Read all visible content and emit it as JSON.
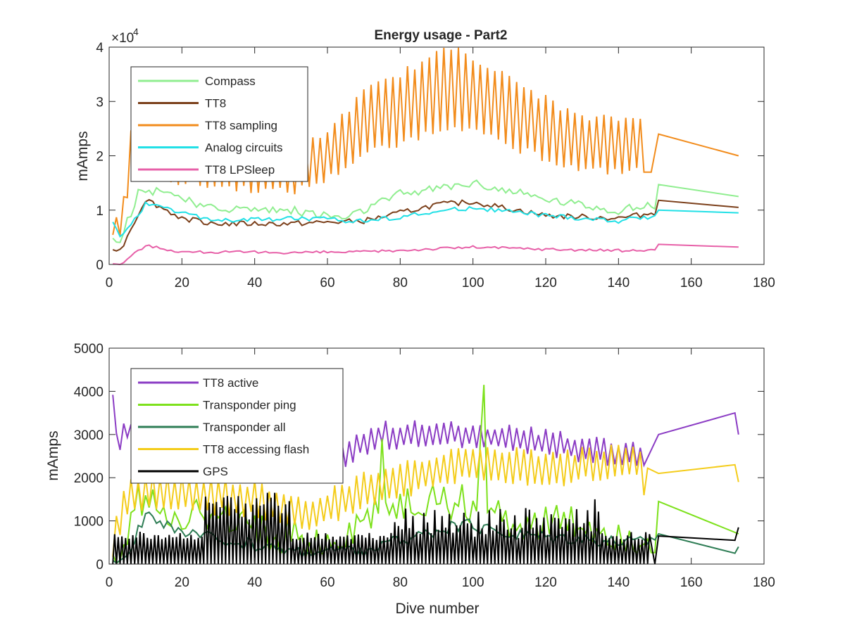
{
  "chart_data": [
    {
      "type": "line",
      "title": "Energy usage - Part2",
      "xlabel": "",
      "ylabel": "mAmps",
      "exponent_label": "×10",
      "exponent_power": "4",
      "xlim": [
        0,
        180
      ],
      "ylim": [
        0,
        40000
      ],
      "x_ticks": [
        0,
        20,
        40,
        60,
        80,
        100,
        120,
        140,
        160,
        180
      ],
      "x_tick_labels": [
        "0",
        "20",
        "40",
        "60",
        "80",
        "100",
        "120",
        "140",
        "160",
        "180"
      ],
      "y_ticks": [
        0,
        10000,
        20000,
        30000,
        40000
      ],
      "y_tick_labels": [
        "0",
        "1",
        "2",
        "3",
        "4"
      ],
      "grid": false,
      "legend_position": "top-left",
      "series": [
        {
          "name": "Compass",
          "color": "#90ee90",
          "kind": "compass"
        },
        {
          "name": "TT8",
          "color": "#7b3f1a",
          "kind": "tt8"
        },
        {
          "name": "TT8 sampling",
          "color": "#f28c1c",
          "kind": "sampling"
        },
        {
          "name": "Analog circuits",
          "color": "#21e0e6",
          "kind": "analog"
        },
        {
          "name": "TT8 LPSleep",
          "color": "#e760a8",
          "kind": "lpsleep"
        }
      ]
    },
    {
      "type": "line",
      "title": "",
      "xlabel": "Dive number",
      "ylabel": "mAmps",
      "xlim": [
        0,
        180
      ],
      "ylim": [
        0,
        5000
      ],
      "x_ticks": [
        0,
        20,
        40,
        60,
        80,
        100,
        120,
        140,
        160,
        180
      ],
      "x_tick_labels": [
        "0",
        "20",
        "40",
        "60",
        "80",
        "100",
        "120",
        "140",
        "160",
        "180"
      ],
      "y_ticks": [
        0,
        1000,
        2000,
        3000,
        4000,
        5000
      ],
      "y_tick_labels": [
        "0",
        "1000",
        "2000",
        "3000",
        "4000",
        "5000"
      ],
      "grid": false,
      "legend_position": "top-left",
      "series": [
        {
          "name": "TT8 active",
          "color": "#8b3cc4",
          "kind": "active"
        },
        {
          "name": "Transponder ping",
          "color": "#7de11c",
          "kind": "ping"
        },
        {
          "name": "Transponder all",
          "color": "#2e7d55",
          "kind": "all"
        },
        {
          "name": "TT8 accessing flash",
          "color": "#f4cc1a",
          "kind": "flash"
        },
        {
          "name": "GPS",
          "color": "#000000",
          "kind": "gps"
        }
      ]
    }
  ]
}
